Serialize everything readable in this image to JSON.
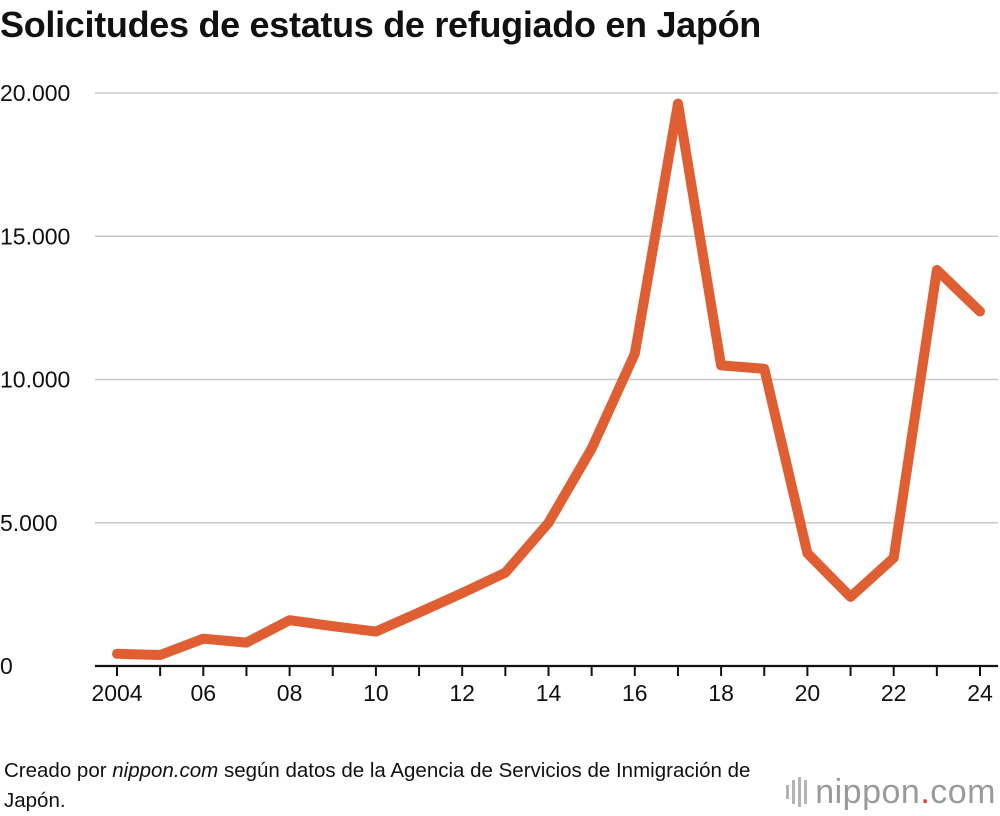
{
  "title": "Solicitudes de estatus de refugiado en Japón",
  "source": {
    "prefix": "Creado por ",
    "site": "nippon.com",
    "suffix": " según datos de la Agencia de Servicios de Inmigración de Japón."
  },
  "logo": {
    "name": "nippon",
    "dot": ".",
    "tld": "com"
  },
  "colors": {
    "line": "#df5f33",
    "grid": "#c8c8c8",
    "axis": "#111111"
  },
  "chart_data": {
    "type": "line",
    "title": "Solicitudes de estatus de refugiado en Japón",
    "xlabel": "",
    "ylabel": "",
    "x": [
      2004,
      2005,
      2006,
      2007,
      2008,
      2009,
      2010,
      2011,
      2012,
      2013,
      2014,
      2015,
      2016,
      2017,
      2018,
      2019,
      2020,
      2021,
      2022,
      2023,
      2024
    ],
    "series": [
      {
        "name": "Solicitudes",
        "values": [
          426,
          384,
          954,
          816,
          1599,
          1388,
          1202,
          1867,
          2545,
          3260,
          5000,
          7586,
          10901,
          19629,
          10493,
          10375,
          3936,
          2413,
          3772,
          13823,
          12373
        ]
      }
    ],
    "x_tick_values": [
      2004,
      2006,
      2008,
      2010,
      2012,
      2014,
      2016,
      2018,
      2020,
      2022,
      2024
    ],
    "x_tick_labels": [
      "2004",
      "06",
      "08",
      "10",
      "12",
      "14",
      "16",
      "18",
      "20",
      "22",
      "24"
    ],
    "y_ticks": [
      0,
      5000,
      10000,
      15000,
      20000
    ],
    "y_tick_labels": [
      "0",
      "5.000",
      "10.000",
      "15.000",
      "20.000"
    ],
    "ylim": [
      0,
      20000
    ],
    "grid": true,
    "legend": "none"
  }
}
